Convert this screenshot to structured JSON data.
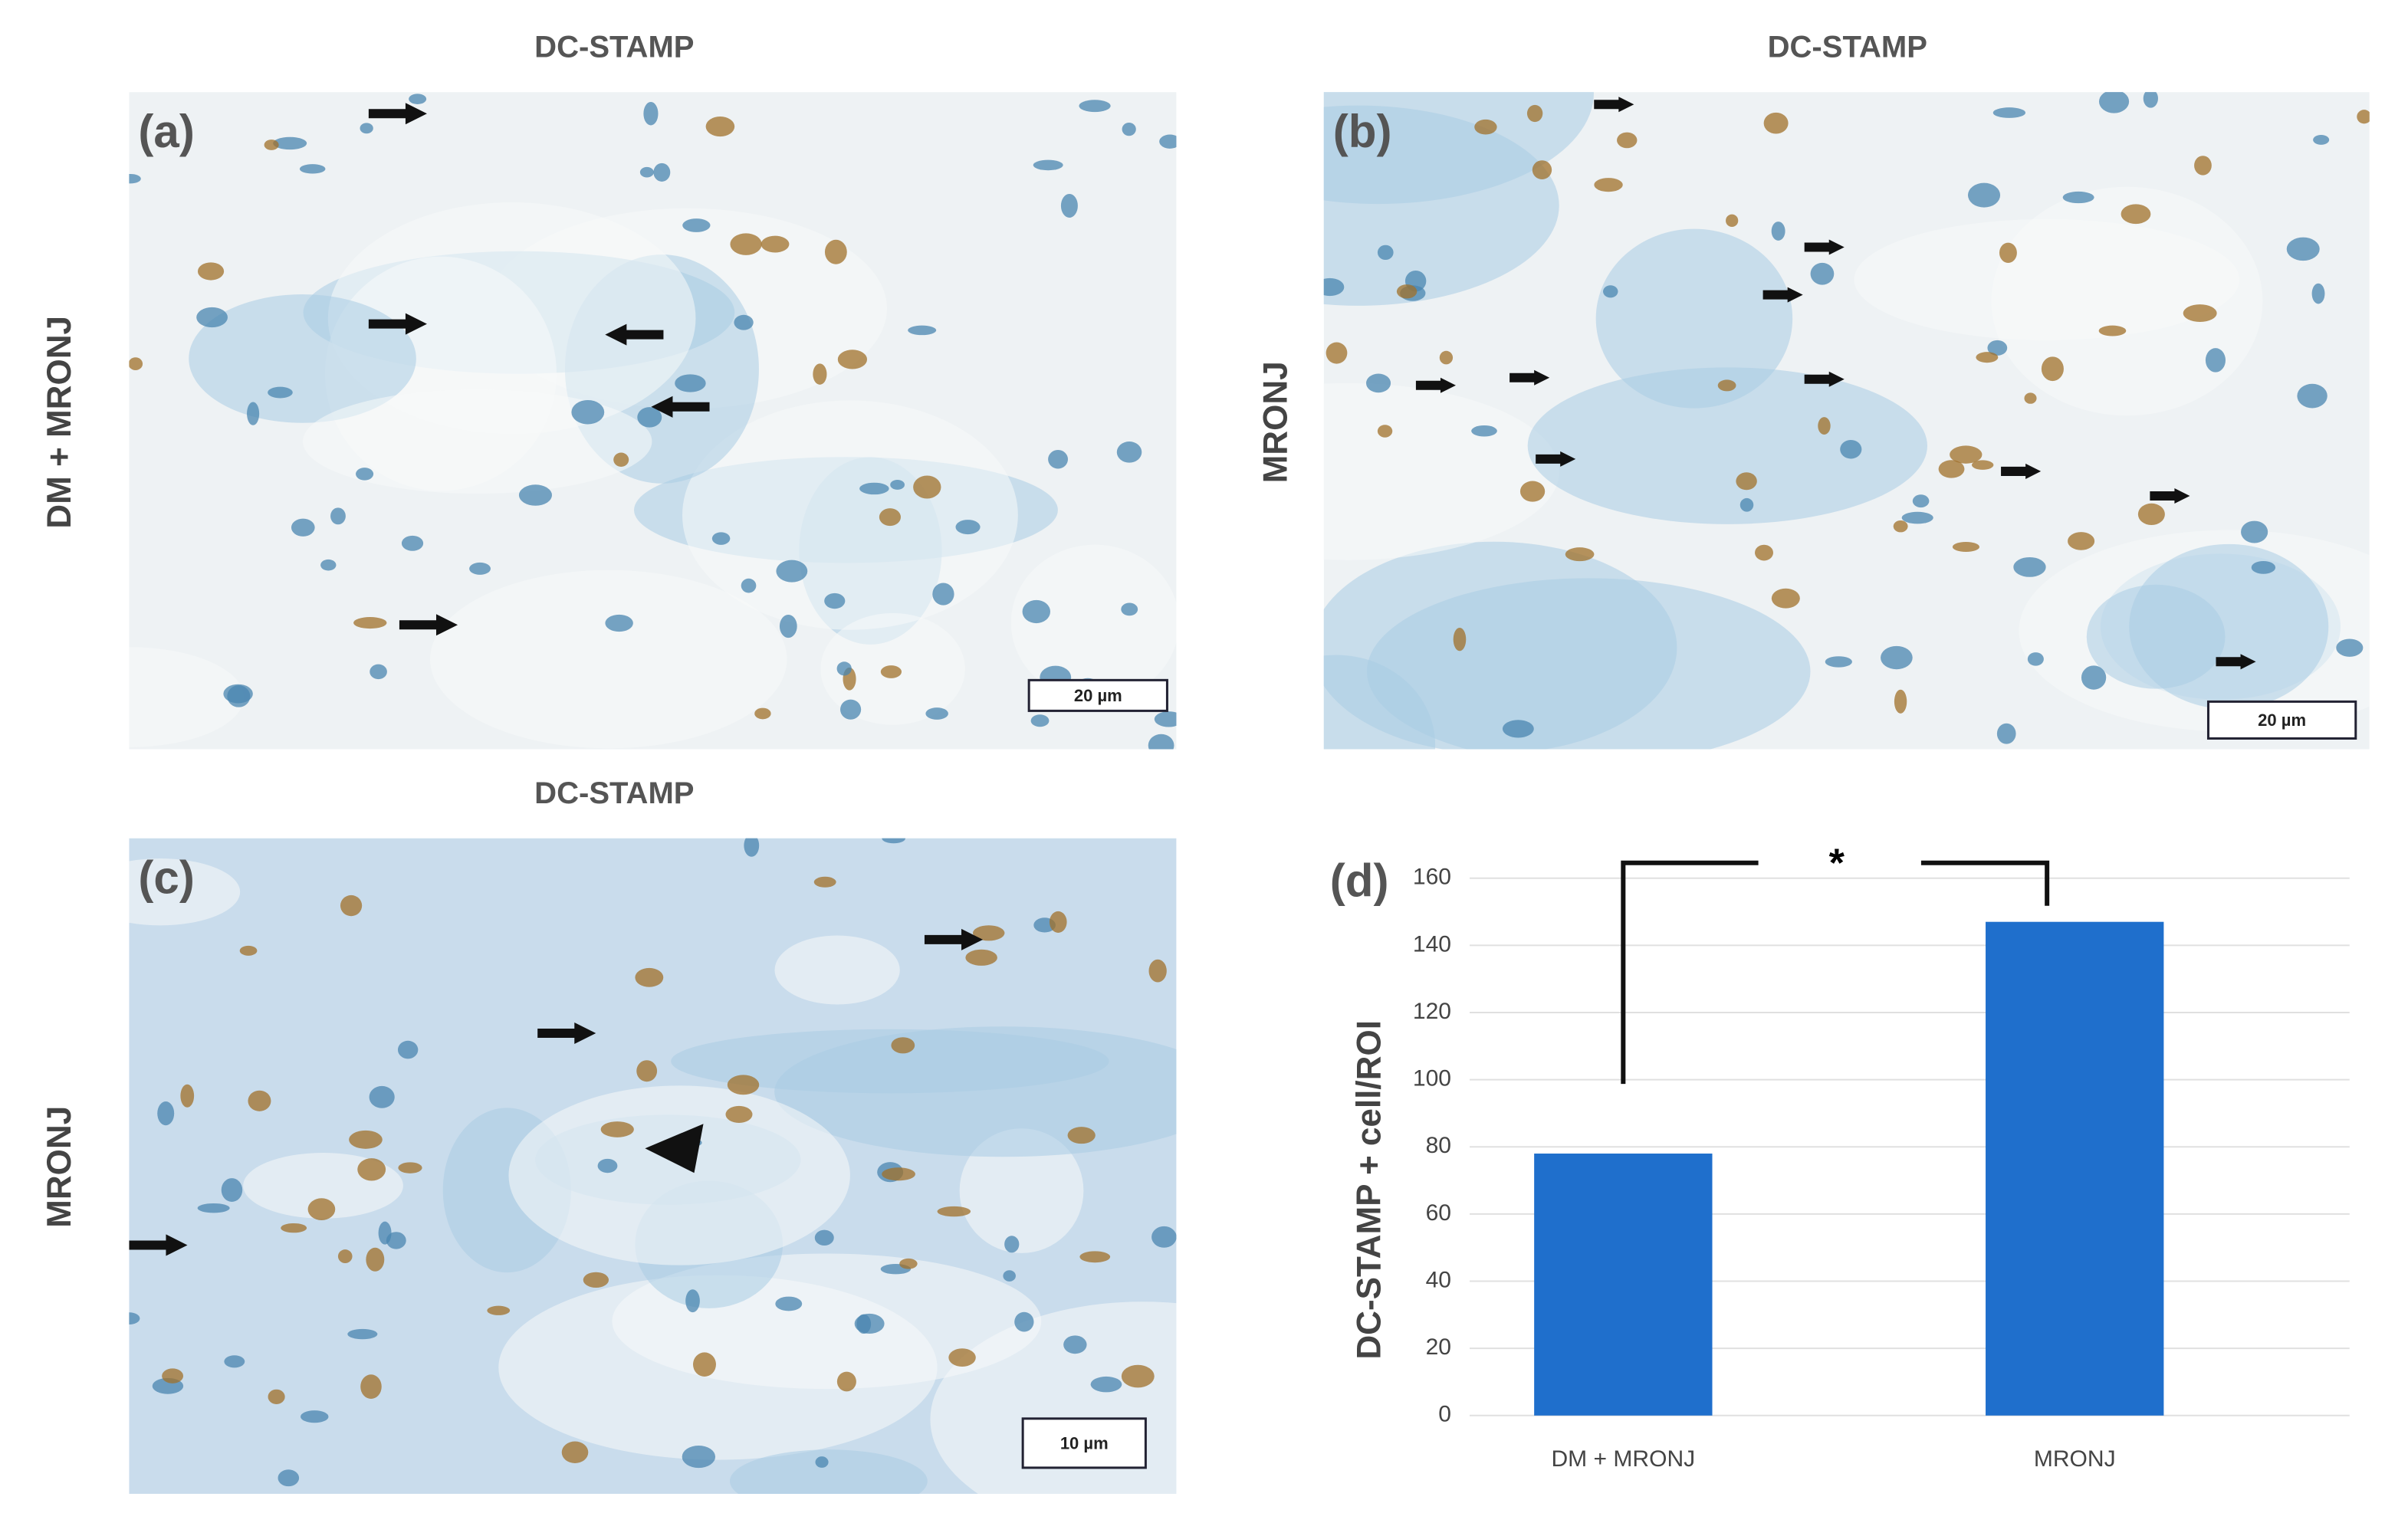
{
  "panels": [
    {
      "label": "(a)",
      "title": "DC-STAMP",
      "row_label": "DM + MRONJ",
      "scale_bar": "20 µm"
    },
    {
      "label": "(b)",
      "title": "DC-STAMP",
      "row_label": "MRONJ",
      "scale_bar": "20 µm"
    },
    {
      "label": "(c)",
      "title": "DC-STAMP",
      "row_label": "MRONJ",
      "scale_bar": "10 µm"
    }
  ],
  "chart_data": {
    "type": "bar",
    "panel_label": "(d)",
    "ylabel": "DC-STAMP + cell/ROI",
    "categories": [
      "DM + MRONJ",
      "MRONJ"
    ],
    "values": [
      78,
      147
    ],
    "color": "#1f6fcc",
    "ylim": [
      0,
      160
    ],
    "yticks": [
      0,
      20,
      40,
      60,
      80,
      100,
      120,
      140,
      160
    ],
    "grid": true,
    "annotation": "*"
  }
}
